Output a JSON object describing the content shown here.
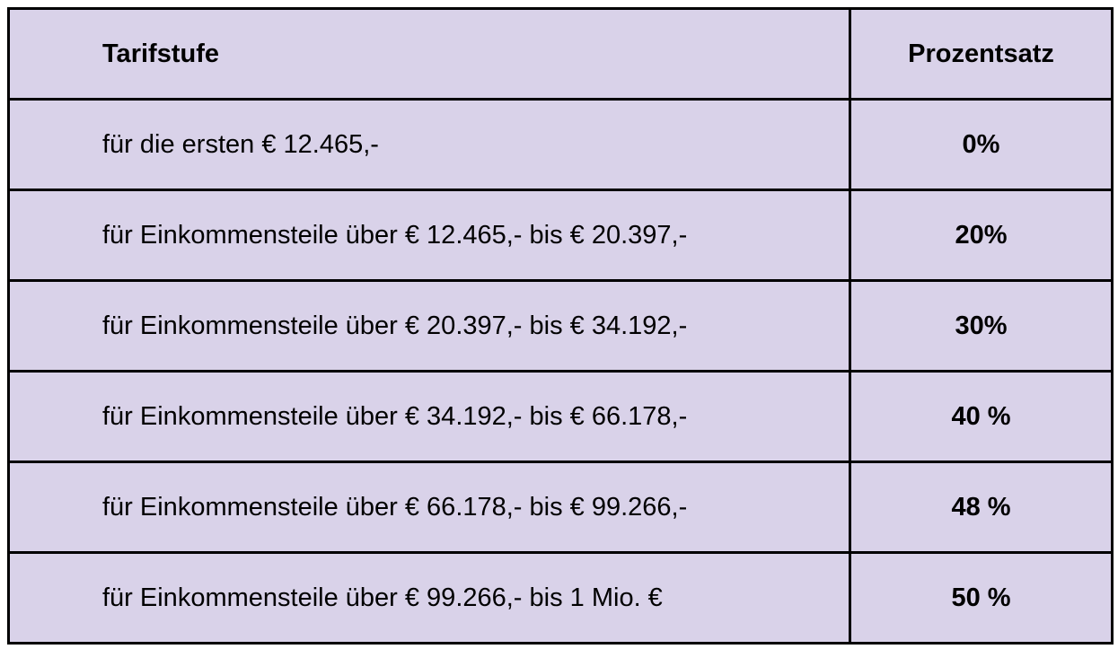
{
  "page": {
    "background_color": "#ffffff"
  },
  "table": {
    "background_color": "#d9d2e9",
    "border_color": "#000000",
    "columns": [
      {
        "key": "tarifstufe",
        "label": "Tarifstufe"
      },
      {
        "key": "prozentsatz",
        "label": "Prozentsatz"
      }
    ],
    "rows": [
      {
        "tarifstufe": "für die ersten € 12.465,-",
        "prozentsatz": "0%"
      },
      {
        "tarifstufe": "für Einkommensteile über € 12.465,- bis € 20.397,-",
        "prozentsatz": "20%"
      },
      {
        "tarifstufe": "für Einkommensteile über € 20.397,- bis € 34.192,-",
        "prozentsatz": "30%"
      },
      {
        "tarifstufe": "für Einkommensteile über € 34.192,- bis € 66.178,-",
        "prozentsatz": "40 %"
      },
      {
        "tarifstufe": "für Einkommensteile über € 66.178,- bis € 99.266,-",
        "prozentsatz": "48 %"
      },
      {
        "tarifstufe": "für Einkommensteile über € 99.266,- bis 1 Mio. €",
        "prozentsatz": "50 %"
      }
    ]
  }
}
